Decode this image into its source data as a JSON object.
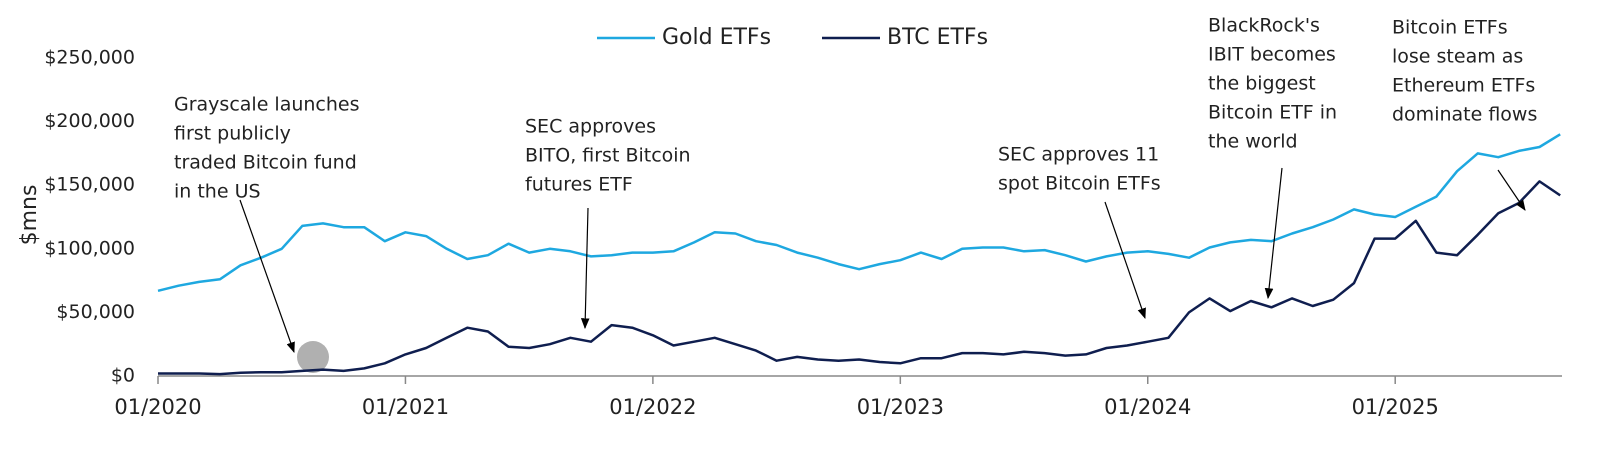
{
  "chart_data": {
    "type": "line",
    "y_label": "$mns",
    "x": [
      "01/2020",
      "02/2020",
      "03/2020",
      "04/2020",
      "05/2020",
      "06/2020",
      "07/2020",
      "08/2020",
      "09/2020",
      "10/2020",
      "11/2020",
      "12/2020",
      "01/2021",
      "02/2021",
      "03/2021",
      "04/2021",
      "05/2021",
      "06/2021",
      "07/2021",
      "08/2021",
      "09/2021",
      "10/2021",
      "11/2021",
      "12/2021",
      "01/2022",
      "02/2022",
      "03/2022",
      "04/2022",
      "05/2022",
      "06/2022",
      "07/2022",
      "08/2022",
      "09/2022",
      "10/2022",
      "11/2022",
      "12/2022",
      "01/2023",
      "02/2023",
      "03/2023",
      "04/2023",
      "05/2023",
      "06/2023",
      "07/2023",
      "08/2023",
      "09/2023",
      "10/2023",
      "11/2023",
      "12/2023",
      "01/2024",
      "02/2024",
      "03/2024",
      "04/2024",
      "05/2024",
      "06/2024",
      "07/2024",
      "08/2024",
      "09/2024",
      "10/2024",
      "11/2024",
      "12/2024",
      "01/2025",
      "02/2025",
      "03/2025",
      "04/2025",
      "05/2025",
      "06/2025",
      "07/2025",
      "08/2025",
      "09/2025"
    ],
    "xticks": [
      "01/2020",
      "01/2021",
      "01/2022",
      "01/2023",
      "01/2024",
      "01/2025"
    ],
    "series": [
      {
        "name": "Gold ETFs",
        "color": "#1ea8e0",
        "values": [
          67000,
          71000,
          74000,
          76000,
          87000,
          93000,
          100000,
          118000,
          120000,
          117000,
          117000,
          106000,
          113000,
          110000,
          100000,
          92000,
          95000,
          104000,
          97000,
          100000,
          98000,
          94000,
          95000,
          97000,
          97000,
          98000,
          105000,
          113000,
          112000,
          106000,
          103000,
          97000,
          93000,
          88000,
          84000,
          88000,
          91000,
          97000,
          92000,
          100000,
          101000,
          101000,
          98000,
          99000,
          95000,
          90000,
          94000,
          97000,
          98000,
          96000,
          93000,
          101000,
          105000,
          107000,
          106000,
          112000,
          117000,
          123000,
          131000,
          127000,
          125000,
          133000,
          141000,
          161000,
          175000,
          172000,
          177000,
          180000,
          190000
        ]
      },
      {
        "name": "BTC ETFs",
        "color": "#0f1e4f",
        "values": [
          2000,
          2000,
          2000,
          1500,
          2500,
          3000,
          3000,
          4000,
          5000,
          4000,
          6000,
          10000,
          17000,
          22000,
          30000,
          38000,
          35000,
          23000,
          22000,
          25000,
          30000,
          27000,
          40000,
          38000,
          32000,
          24000,
          27000,
          30000,
          25000,
          20000,
          12000,
          15000,
          13000,
          12000,
          13000,
          11000,
          10000,
          14000,
          14000,
          18000,
          18000,
          17000,
          19000,
          18000,
          16000,
          17000,
          22000,
          24000,
          27000,
          30000,
          50000,
          61000,
          51000,
          59000,
          54000,
          61000,
          55000,
          60000,
          73000,
          108000,
          108000,
          122000,
          97000,
          95000,
          111000,
          128000,
          136000,
          153000,
          142000
        ]
      }
    ],
    "ylim": [
      0,
      250000
    ],
    "yticks": [
      {
        "value": 0,
        "label": "$0"
      },
      {
        "value": 50000,
        "label": "$50,000"
      },
      {
        "value": 100000,
        "label": "$100,000"
      },
      {
        "value": 150000,
        "label": "$150,000"
      },
      {
        "value": 200000,
        "label": "$200,000"
      },
      {
        "value": 250000,
        "label": "$250,000"
      }
    ],
    "annotations": [
      {
        "lines": [
          "Grayscale launches",
          "first publicly",
          "traded Bitcoin fund",
          "in the US"
        ]
      },
      {
        "lines": [
          "SEC approves",
          "BITO, first Bitcoin",
          "futures ETF"
        ]
      },
      {
        "lines": [
          "SEC approves 11",
          "spot Bitcoin ETFs"
        ]
      },
      {
        "lines": [
          "BlackRock's",
          "IBIT becomes",
          "the biggest",
          "Bitcoin ETF in",
          "the world"
        ]
      },
      {
        "lines": [
          "Bitcoin ETFs",
          "lose steam as",
          "Ethereum ETFs",
          "dominate flows"
        ]
      }
    ],
    "legend": "top"
  }
}
